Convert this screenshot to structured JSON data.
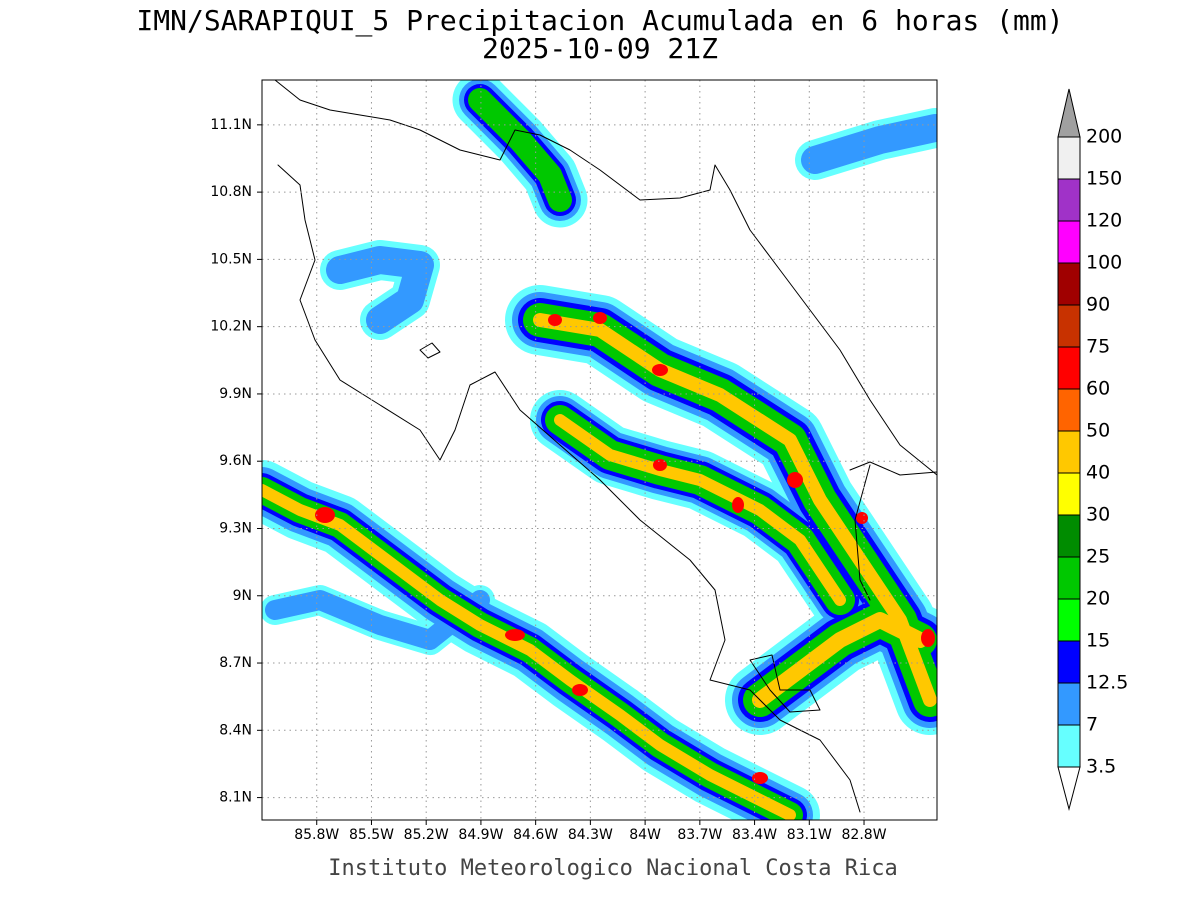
{
  "map": {
    "title": "IMN/SARAPIQUI_5 Precipitacion Acumulada en 6 horas (mm)",
    "subtitle": "2025-10-09 21Z",
    "footer": "Instituto Meteorologico Nacional Costa Rica",
    "xlim": [
      -86.1,
      -82.4
    ],
    "ylim": [
      8.0,
      11.3
    ],
    "xticks": [
      {
        "value": -85.8,
        "label": "85.8W"
      },
      {
        "value": -85.5,
        "label": "85.5W"
      },
      {
        "value": -85.2,
        "label": "85.2W"
      },
      {
        "value": -84.9,
        "label": "84.9W"
      },
      {
        "value": -84.6,
        "label": "84.6W"
      },
      {
        "value": -84.3,
        "label": "84.3W"
      },
      {
        "value": -84,
        "label": "84W"
      },
      {
        "value": -83.7,
        "label": "83.7W"
      },
      {
        "value": -83.4,
        "label": "83.4W"
      },
      {
        "value": -83.1,
        "label": "83.1W"
      },
      {
        "value": -82.8,
        "label": "82.8W"
      }
    ],
    "yticks": [
      {
        "value": 8.1,
        "label": "8.1N"
      },
      {
        "value": 8.4,
        "label": "8.4N"
      },
      {
        "value": 8.7,
        "label": "8.7N"
      },
      {
        "value": 9,
        "label": "9N"
      },
      {
        "value": 9.3,
        "label": "9.3N"
      },
      {
        "value": 9.6,
        "label": "9.6N"
      },
      {
        "value": 9.9,
        "label": "9.9N"
      },
      {
        "value": 10.2,
        "label": "10.2N"
      },
      {
        "value": 10.5,
        "label": "10.5N"
      },
      {
        "value": 10.8,
        "label": "10.8N"
      },
      {
        "value": 11.1,
        "label": "11.1N"
      }
    ],
    "grid": true,
    "colorbar": {
      "levels": [
        3.5,
        7,
        12.5,
        15,
        20,
        25,
        30,
        40,
        50,
        60,
        75,
        90,
        100,
        120,
        150,
        200
      ],
      "colors": [
        "#ffffff",
        "#66ffff",
        "#3399ff",
        "#0000ff",
        "#00ff00",
        "#00c800",
        "#008c00",
        "#ffff00",
        "#ffc800",
        "#ff6400",
        "#ff0000",
        "#c83200",
        "#a00000",
        "#ff00ff",
        "#a032c8",
        "#f0f0f0",
        "#a0a0a0"
      ]
    }
  }
}
